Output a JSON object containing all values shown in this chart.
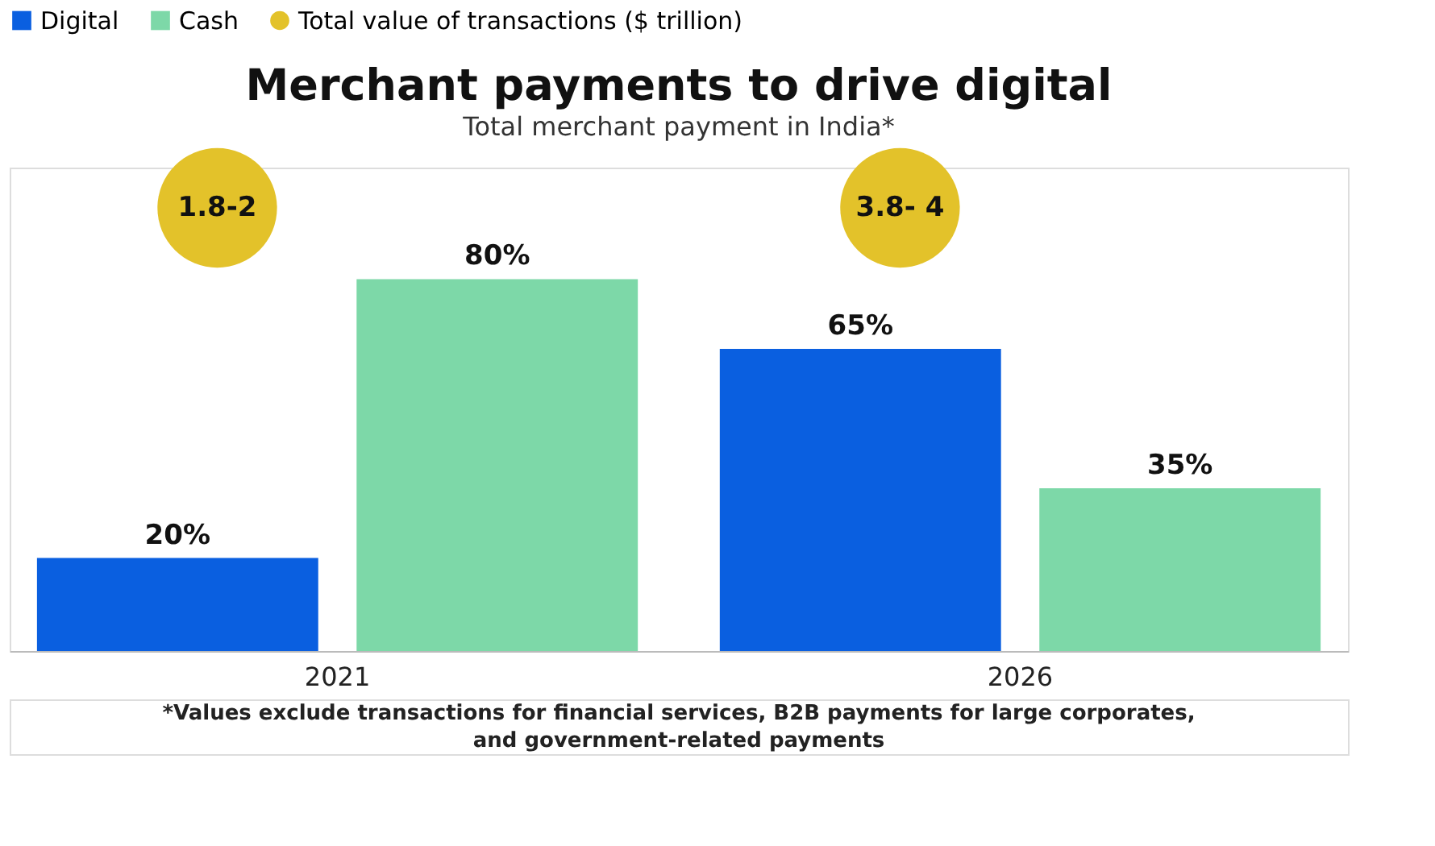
{
  "chart_data": {
    "type": "bar",
    "title": "Merchant payments to drive digital",
    "subtitle": "Total merchant payment in India*",
    "categories": [
      "2021",
      "2026"
    ],
    "series": [
      {
        "name": "Digital",
        "color": "#0a5fe0",
        "values": [
          20,
          65
        ],
        "value_labels": [
          "20%",
          "65%"
        ]
      },
      {
        "name": "Cash",
        "color": "#7dd8a8",
        "values": [
          80,
          35
        ],
        "value_labels": [
          "80%",
          "35%"
        ]
      },
      {
        "name": "Total value of transactions ($ trillion)",
        "type": "scatter",
        "color": "#e3c22a",
        "values": [
          null,
          null
        ],
        "value_labels": [
          "1.8-2",
          "3.8- 4"
        ]
      }
    ],
    "legend": "top",
    "annotations": [
      "*Values exclude transactions for financial services, B2B payments for large corporates,",
      "and government-related payments"
    ]
  }
}
